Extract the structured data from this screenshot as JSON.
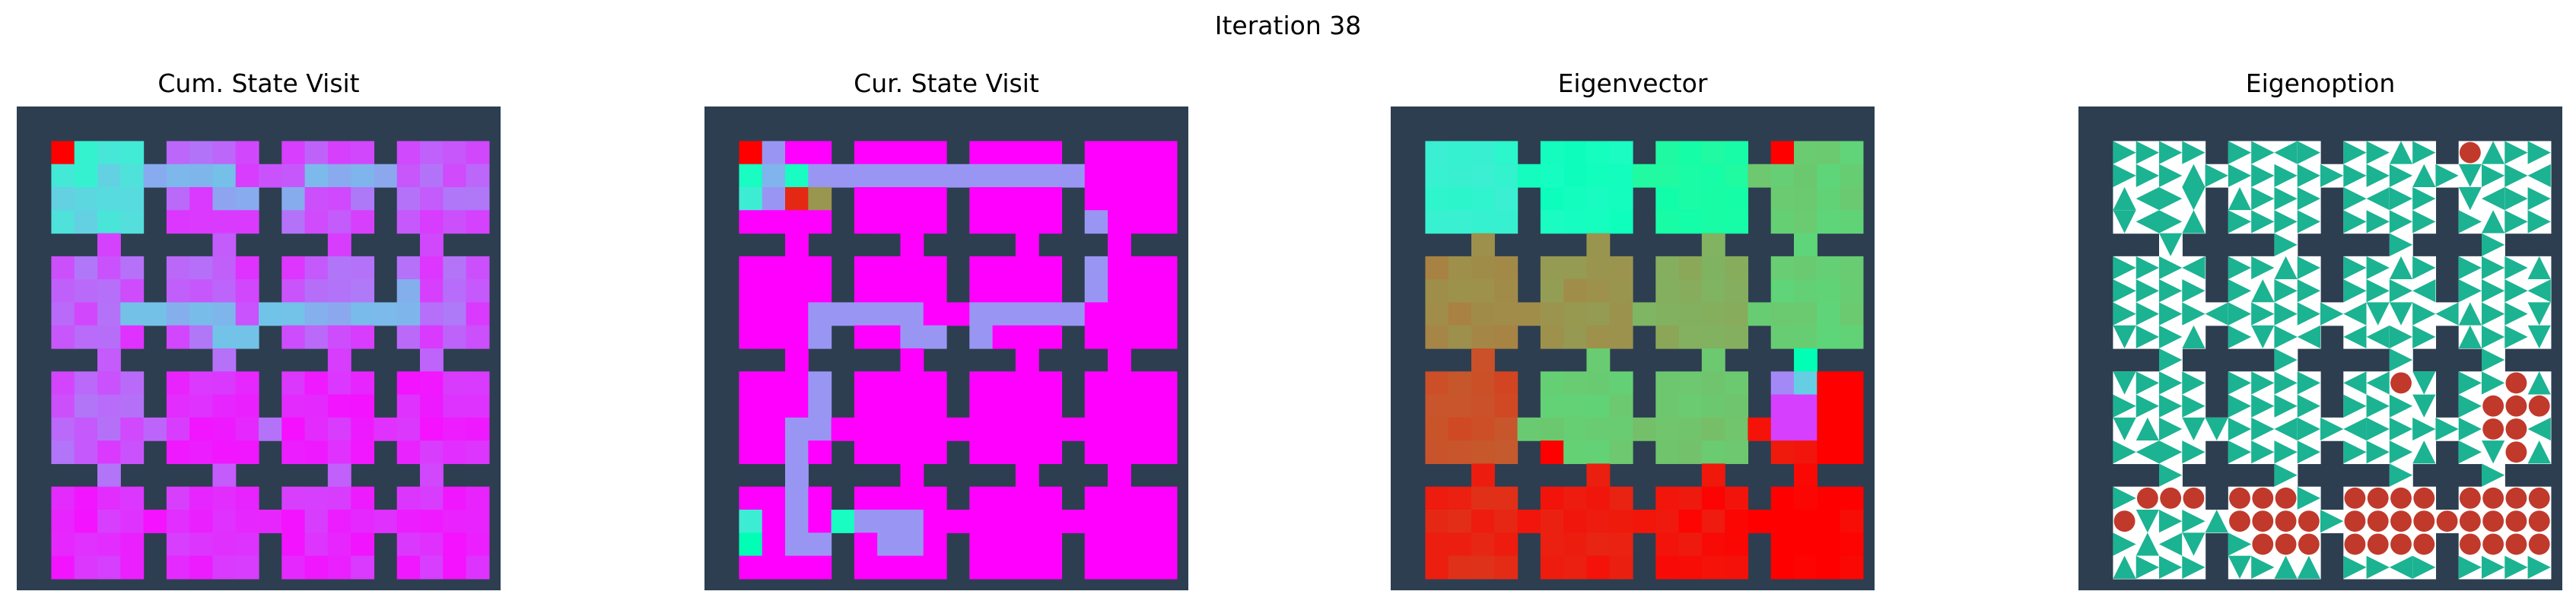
{
  "figure": {
    "title": "Iteration 38"
  },
  "colors": {
    "wall": "#2d3e50",
    "arrow": "#1bb392",
    "terminal": "#c0392b",
    "arrow_background": "#ffffff"
  },
  "env": {
    "grid_size": 20,
    "room_cells": [
      [
        1,
        2,
        3,
        4
      ],
      [
        6,
        7,
        8,
        9
      ],
      [
        11,
        12,
        13,
        14
      ],
      [
        16,
        17,
        18,
        19
      ]
    ],
    "horizontal_doors": [
      {
        "row": 2,
        "between_cols": 5
      },
      {
        "row": 2,
        "between_cols": 10
      },
      {
        "row": 2,
        "between_cols": 15
      },
      {
        "row": 8,
        "between_cols": 5
      },
      {
        "row": 8,
        "between_cols": 10
      },
      {
        "row": 8,
        "between_cols": 15
      },
      {
        "row": 13,
        "between_cols": 5
      },
      {
        "row": 13,
        "between_cols": 10
      },
      {
        "row": 13,
        "between_cols": 15
      },
      {
        "row": 17,
        "between_cols": 5
      },
      {
        "row": 17,
        "between_cols": 10
      },
      {
        "row": 17,
        "between_cols": 15
      }
    ],
    "vertical_doors": [
      {
        "col": 3,
        "between_rows": 5
      },
      {
        "col": 8,
        "between_rows": 5
      },
      {
        "col": 13,
        "between_rows": 5
      },
      {
        "col": 17,
        "between_rows": 5
      },
      {
        "col": 3,
        "between_rows": 10
      },
      {
        "col": 8,
        "between_rows": 10
      },
      {
        "col": 13,
        "between_rows": 10
      },
      {
        "col": 17,
        "between_rows": 10
      },
      {
        "col": 3,
        "between_rows": 15
      },
      {
        "col": 8,
        "between_rows": 15
      },
      {
        "col": 13,
        "between_rows": 15
      },
      {
        "col": 17,
        "between_rows": 15
      }
    ]
  },
  "panels": [
    {
      "id": "cum",
      "title": "Cum. State Visit",
      "type": "heatmap-visits"
    },
    {
      "id": "cur",
      "title": "Cur. State Visit",
      "type": "heatmap-path"
    },
    {
      "id": "eig",
      "title": "Eigenvector",
      "type": "heatmap-eigen"
    },
    {
      "id": "opt",
      "title": "Eigenoption",
      "type": "policy-arrows"
    }
  ],
  "chart_data": {
    "type": "heatmap",
    "colormap": "rainbow",
    "start_cell": [
      1,
      1
    ],
    "cur_path": [
      [
        3,
        1
      ],
      [
        3,
        2
      ],
      [
        3,
        3
      ],
      [
        2,
        3
      ],
      [
        2,
        4
      ],
      [
        2,
        5
      ],
      [
        2,
        6
      ],
      [
        2,
        7
      ],
      [
        2,
        8
      ],
      [
        2,
        9
      ],
      [
        2,
        10
      ],
      [
        2,
        11
      ],
      [
        2,
        12
      ],
      [
        2,
        13
      ],
      [
        2,
        14
      ],
      [
        2,
        15
      ],
      [
        3,
        15
      ],
      [
        4,
        15
      ],
      [
        4,
        16
      ],
      [
        5,
        16
      ],
      [
        6,
        16
      ],
      [
        7,
        16
      ],
      [
        7,
        15
      ],
      [
        8,
        15
      ],
      [
        8,
        14
      ],
      [
        8,
        13
      ],
      [
        8,
        12
      ],
      [
        8,
        11
      ],
      [
        9,
        11
      ],
      [
        9,
        10
      ],
      [
        9,
        9
      ],
      [
        9,
        8
      ],
      [
        8,
        8
      ],
      [
        8,
        7
      ],
      [
        8,
        6
      ],
      [
        8,
        5
      ],
      [
        8,
        4
      ],
      [
        9,
        4
      ],
      [
        10,
        4
      ],
      [
        11,
        4
      ],
      [
        12,
        4
      ],
      [
        13,
        4
      ],
      [
        13,
        3
      ],
      [
        14,
        3
      ],
      [
        15,
        3
      ],
      [
        16,
        3
      ],
      [
        17,
        3
      ],
      [
        18,
        3
      ],
      [
        18,
        4
      ],
      [
        18,
        5
      ],
      [
        17,
        5
      ],
      [
        17,
        6
      ],
      [
        17,
        7
      ],
      [
        18,
        7
      ],
      [
        18,
        8
      ],
      [
        17,
        8
      ]
    ],
    "cum_path": [
      [
        2,
        5
      ],
      [
        2,
        6
      ],
      [
        2,
        7
      ],
      [
        2,
        8
      ],
      [
        3,
        8
      ],
      [
        3,
        9
      ],
      [
        3,
        10
      ],
      [
        3,
        11
      ],
      [
        2,
        12
      ],
      [
        2,
        13
      ],
      [
        2,
        14
      ],
      [
        2,
        15
      ],
      [
        3,
        15
      ],
      [
        4,
        15
      ],
      [
        5,
        15
      ],
      [
        6,
        15
      ],
      [
        7,
        15
      ],
      [
        7,
        16
      ],
      [
        8,
        16
      ],
      [
        8,
        15
      ],
      [
        8,
        14
      ],
      [
        8,
        13
      ],
      [
        8,
        12
      ],
      [
        8,
        11
      ],
      [
        8,
        10
      ],
      [
        9,
        9
      ],
      [
        9,
        8
      ],
      [
        8,
        8
      ],
      [
        8,
        7
      ],
      [
        8,
        6
      ],
      [
        8,
        5
      ],
      [
        8,
        4
      ]
    ],
    "eigen_room_levels": [
      [
        0.4,
        0.46,
        0.55,
        0.7
      ],
      [
        0.82,
        0.8,
        0.76,
        0.7
      ],
      [
        0.9,
        0.7,
        0.72,
        0.98
      ],
      [
        0.95,
        0.97,
        0.98,
        1.0
      ]
    ],
    "terminal_cells": [
      [
        1,
        16
      ],
      [
        14,
        5
      ],
      [
        15,
        1
      ],
      [
        16,
        2
      ],
      [
        16,
        3
      ],
      [
        16,
        4
      ],
      [
        17,
        1
      ],
      [
        16,
        6
      ],
      [
        16,
        7
      ],
      [
        16,
        8
      ],
      [
        17,
        6
      ],
      [
        17,
        7
      ],
      [
        17,
        8
      ],
      [
        18,
        7
      ],
      [
        18,
        8
      ],
      [
        18,
        9
      ],
      [
        17,
        9
      ],
      [
        16,
        11
      ],
      [
        16,
        12
      ],
      [
        16,
        13
      ],
      [
        16,
        14
      ],
      [
        17,
        11
      ],
      [
        17,
        12
      ],
      [
        17,
        13
      ],
      [
        17,
        14
      ],
      [
        18,
        11
      ],
      [
        18,
        12
      ],
      [
        18,
        13
      ],
      [
        18,
        14
      ],
      [
        17,
        15
      ],
      [
        16,
        16
      ],
      [
        16,
        17
      ],
      [
        16,
        18
      ],
      [
        16,
        19
      ],
      [
        17,
        16
      ],
      [
        17,
        17
      ],
      [
        17,
        18
      ],
      [
        17,
        19
      ],
      [
        18,
        16
      ],
      [
        18,
        17
      ],
      [
        18,
        18
      ],
      [
        18,
        19
      ],
      [
        12,
        17
      ],
      [
        12,
        18
      ],
      [
        13,
        17
      ],
      [
        13,
        18
      ],
      [
        14,
        18
      ],
      [
        11,
        18
      ],
      [
        12,
        19
      ],
      [
        15,
        18
      ],
      [
        11,
        13
      ]
    ]
  }
}
